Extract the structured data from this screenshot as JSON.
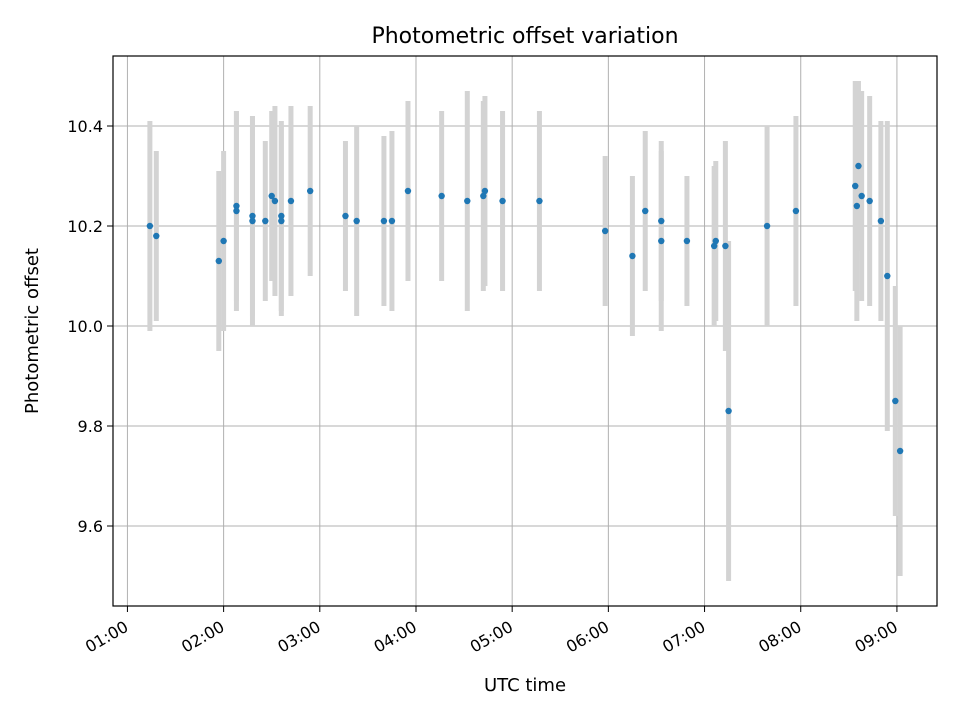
{
  "chart_data": {
    "type": "scatter",
    "title": "Photometric offset variation",
    "xlabel": "UTC time",
    "ylabel": "Photometric offset",
    "x_ticks": [
      "01:00",
      "02:00",
      "03:00",
      "04:00",
      "05:00",
      "06:00",
      "07:00",
      "08:00",
      "09:00"
    ],
    "y_ticks": [
      "9.6",
      "9.8",
      "10.0",
      "10.2",
      "10.4"
    ],
    "xlim": [
      "00:51",
      "09:25"
    ],
    "ylim": [
      9.44,
      10.54
    ],
    "grid": true,
    "point_color": "#1f77b4",
    "errorbar_color": "#d3d3d3",
    "series": [
      {
        "x": [
          "01:14",
          "01:18",
          "01:57",
          "02:00",
          "02:08",
          "02:08",
          "02:18",
          "02:18",
          "02:26",
          "02:30",
          "02:32",
          "02:36",
          "02:36",
          "02:42",
          "02:54",
          "03:16",
          "03:23",
          "03:40",
          "03:45",
          "03:55",
          "04:16",
          "04:32",
          "04:42",
          "04:43",
          "04:54",
          "05:17",
          "05:58",
          "06:15",
          "06:23",
          "06:33",
          "06:33",
          "06:49",
          "07:06",
          "07:07",
          "07:13",
          "07:15",
          "07:39",
          "07:57",
          "08:34",
          "08:35",
          "08:36",
          "08:38",
          "08:43",
          "08:50",
          "08:54",
          "08:59",
          "09:02"
        ],
        "y": [
          10.2,
          10.18,
          10.13,
          10.17,
          10.24,
          10.23,
          10.21,
          10.22,
          10.21,
          10.26,
          10.25,
          10.22,
          10.21,
          10.25,
          10.27,
          10.22,
          10.21,
          10.21,
          10.21,
          10.27,
          10.26,
          10.25,
          10.26,
          10.27,
          10.25,
          10.25,
          10.19,
          10.14,
          10.23,
          10.21,
          10.17,
          10.17,
          10.16,
          10.17,
          10.16,
          9.83,
          10.2,
          10.23,
          10.28,
          10.24,
          10.32,
          10.26,
          10.25,
          10.21,
          10.1,
          9.85,
          9.75
        ],
        "yerr": [
          0.21,
          0.17,
          0.18,
          0.18,
          0.19,
          0.2,
          0.21,
          0.2,
          0.16,
          0.17,
          0.19,
          0.19,
          0.19,
          0.19,
          0.17,
          0.15,
          0.19,
          0.17,
          0.18,
          0.18,
          0.17,
          0.22,
          0.19,
          0.19,
          0.18,
          0.18,
          0.15,
          0.16,
          0.16,
          0.16,
          0.18,
          0.13,
          0.16,
          0.16,
          0.21,
          0.34,
          0.2,
          0.19,
          0.21,
          0.23,
          0.17,
          0.21,
          0.21,
          0.2,
          0.31,
          0.23,
          0.25
        ]
      }
    ]
  }
}
